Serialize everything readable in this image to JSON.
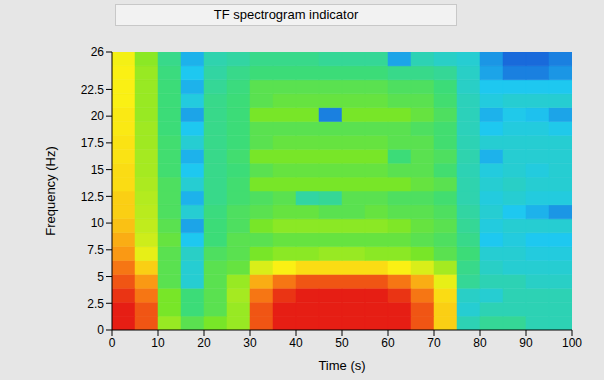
{
  "chart_data": {
    "type": "heatmap",
    "title": "TF spectrogram indicator",
    "x_label": "Time (s)",
    "y_label": "Frequency (Hz)",
    "xlim": [
      0,
      100
    ],
    "ylim": [
      0,
      26
    ],
    "xticks": [
      0,
      10,
      20,
      30,
      40,
      50,
      60,
      70,
      80,
      90,
      100
    ],
    "yticks": [
      0,
      2.5,
      5,
      7.5,
      10,
      12.5,
      15,
      17.5,
      20,
      22.5,
      26
    ],
    "x_edges": [
      0,
      5,
      10,
      15,
      20,
      25,
      30,
      35,
      40,
      45,
      50,
      55,
      60,
      65,
      70,
      75,
      80,
      85,
      90,
      95,
      100
    ],
    "y_edges": [
      0,
      1.3,
      2.6,
      3.9,
      5.2,
      6.5,
      7.8,
      9.1,
      10.4,
      11.7,
      13,
      14.3,
      15.6,
      16.9,
      18.2,
      19.5,
      20.8,
      22.1,
      23.4,
      24.7,
      26
    ],
    "zlim": [
      0,
      1
    ],
    "cells": [
      [
        1.0,
        0.95,
        0.6,
        0.5,
        0.55,
        0.6,
        0.95,
        1.0,
        1.0,
        1.0,
        1.0,
        1.0,
        1.0,
        0.95,
        0.8,
        0.35,
        0.4,
        0.4,
        0.35,
        0.35
      ],
      [
        1.0,
        0.95,
        0.55,
        0.45,
        0.5,
        0.6,
        0.95,
        1.0,
        1.0,
        1.0,
        1.0,
        1.0,
        1.0,
        0.95,
        0.8,
        0.3,
        0.35,
        0.35,
        0.35,
        0.35
      ],
      [
        0.98,
        0.92,
        0.55,
        0.45,
        0.5,
        0.62,
        0.92,
        0.98,
        1.0,
        1.0,
        1.0,
        1.0,
        0.98,
        0.92,
        0.78,
        0.32,
        0.3,
        0.35,
        0.35,
        0.35
      ],
      [
        0.95,
        0.88,
        0.5,
        0.3,
        0.5,
        0.6,
        0.85,
        0.92,
        0.95,
        0.95,
        0.95,
        0.95,
        0.92,
        0.85,
        0.72,
        0.4,
        0.35,
        0.35,
        0.32,
        0.32
      ],
      [
        0.92,
        0.8,
        0.5,
        0.3,
        0.5,
        0.52,
        0.7,
        0.75,
        0.78,
        0.78,
        0.78,
        0.78,
        0.75,
        0.7,
        0.62,
        0.42,
        0.32,
        0.3,
        0.3,
        0.3
      ],
      [
        0.88,
        0.72,
        0.5,
        0.32,
        0.48,
        0.5,
        0.55,
        0.58,
        0.58,
        0.6,
        0.6,
        0.58,
        0.58,
        0.55,
        0.5,
        0.45,
        0.3,
        0.3,
        0.28,
        0.28
      ],
      [
        0.85,
        0.68,
        0.52,
        0.25,
        0.45,
        0.5,
        0.5,
        0.52,
        0.52,
        0.52,
        0.52,
        0.52,
        0.52,
        0.5,
        0.48,
        0.42,
        0.25,
        0.28,
        0.25,
        0.25
      ],
      [
        0.82,
        0.66,
        0.5,
        0.2,
        0.45,
        0.48,
        0.55,
        0.58,
        0.58,
        0.58,
        0.58,
        0.58,
        0.56,
        0.52,
        0.5,
        0.4,
        0.28,
        0.3,
        0.3,
        0.3
      ],
      [
        0.8,
        0.65,
        0.48,
        0.3,
        0.44,
        0.48,
        0.5,
        0.52,
        0.52,
        0.5,
        0.5,
        0.52,
        0.5,
        0.5,
        0.48,
        0.38,
        0.3,
        0.25,
        0.22,
        0.18
      ],
      [
        0.8,
        0.64,
        0.48,
        0.22,
        0.42,
        0.46,
        0.48,
        0.5,
        0.38,
        0.4,
        0.5,
        0.5,
        0.48,
        0.48,
        0.46,
        0.36,
        0.28,
        0.3,
        0.28,
        0.28
      ],
      [
        0.78,
        0.63,
        0.48,
        0.3,
        0.42,
        0.46,
        0.55,
        0.55,
        0.55,
        0.55,
        0.55,
        0.55,
        0.55,
        0.52,
        0.5,
        0.36,
        0.3,
        0.32,
        0.3,
        0.3
      ],
      [
        0.78,
        0.62,
        0.46,
        0.25,
        0.42,
        0.45,
        0.5,
        0.52,
        0.52,
        0.52,
        0.52,
        0.52,
        0.5,
        0.5,
        0.46,
        0.35,
        0.28,
        0.3,
        0.28,
        0.3
      ],
      [
        0.77,
        0.62,
        0.46,
        0.22,
        0.42,
        0.46,
        0.55,
        0.55,
        0.55,
        0.55,
        0.55,
        0.55,
        0.45,
        0.5,
        0.48,
        0.36,
        0.22,
        0.3,
        0.3,
        0.3
      ],
      [
        0.77,
        0.61,
        0.46,
        0.3,
        0.42,
        0.45,
        0.5,
        0.52,
        0.52,
        0.52,
        0.52,
        0.52,
        0.5,
        0.5,
        0.46,
        0.35,
        0.3,
        0.3,
        0.3,
        0.3
      ],
      [
        0.76,
        0.61,
        0.45,
        0.25,
        0.42,
        0.45,
        0.5,
        0.5,
        0.5,
        0.5,
        0.5,
        0.5,
        0.5,
        0.48,
        0.46,
        0.34,
        0.25,
        0.28,
        0.28,
        0.26
      ],
      [
        0.76,
        0.6,
        0.45,
        0.2,
        0.42,
        0.45,
        0.55,
        0.55,
        0.55,
        0.15,
        0.55,
        0.55,
        0.55,
        0.52,
        0.48,
        0.34,
        0.22,
        0.26,
        0.24,
        0.2
      ],
      [
        0.75,
        0.6,
        0.45,
        0.28,
        0.42,
        0.45,
        0.5,
        0.52,
        0.52,
        0.52,
        0.52,
        0.52,
        0.5,
        0.5,
        0.46,
        0.34,
        0.28,
        0.3,
        0.3,
        0.3
      ],
      [
        0.75,
        0.6,
        0.45,
        0.22,
        0.4,
        0.44,
        0.5,
        0.5,
        0.5,
        0.5,
        0.5,
        0.5,
        0.48,
        0.48,
        0.45,
        0.32,
        0.25,
        0.25,
        0.25,
        0.25
      ],
      [
        0.75,
        0.6,
        0.44,
        0.25,
        0.38,
        0.42,
        0.45,
        0.45,
        0.45,
        0.45,
        0.45,
        0.45,
        0.42,
        0.42,
        0.4,
        0.32,
        0.2,
        0.15,
        0.15,
        0.18
      ],
      [
        0.74,
        0.58,
        0.42,
        0.22,
        0.36,
        0.38,
        0.42,
        0.42,
        0.42,
        0.4,
        0.4,
        0.4,
        0.2,
        0.35,
        0.32,
        0.3,
        0.18,
        0.12,
        0.12,
        0.15
      ]
    ]
  }
}
